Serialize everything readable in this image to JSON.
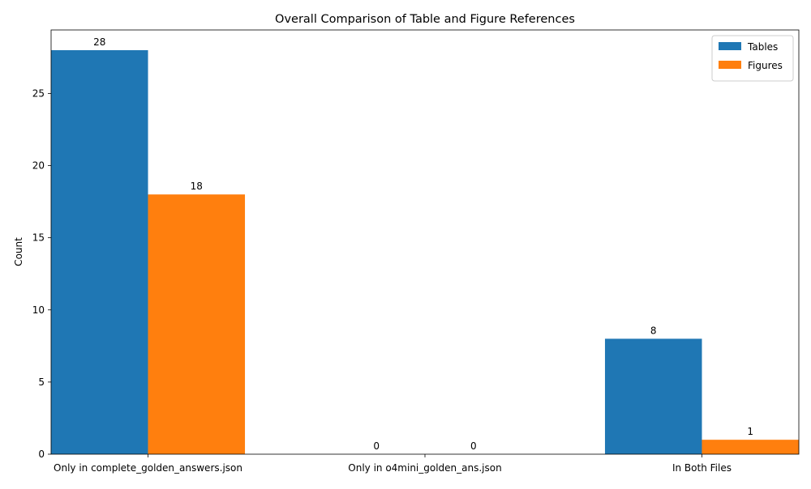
{
  "chart_data": {
    "type": "bar",
    "title": "Overall Comparison of Table and Figure References",
    "xlabel": "",
    "ylabel": "Count",
    "categories": [
      "Only in complete_golden_answers.json",
      "Only in o4mini_golden_ans.json",
      "In Both Files"
    ],
    "series": [
      {
        "name": "Tables",
        "values": [
          28,
          0,
          8
        ],
        "color": "#1f77b4"
      },
      {
        "name": "Figures",
        "values": [
          18,
          0,
          1
        ],
        "color": "#ff7f0e"
      }
    ],
    "ylim": [
      0,
      29.4
    ],
    "yticks": [
      0,
      5,
      10,
      15,
      20,
      25
    ],
    "grid": false,
    "legend": "top-right",
    "data_labels": true
  }
}
